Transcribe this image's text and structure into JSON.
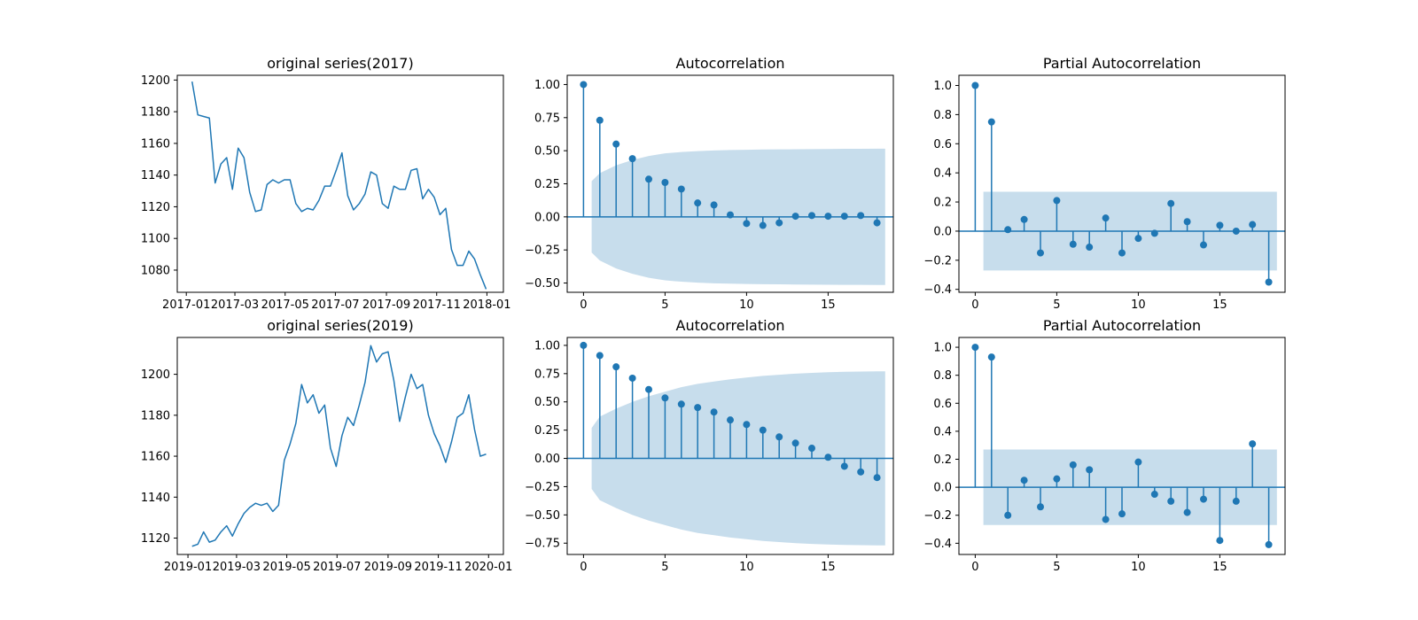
{
  "colors": {
    "line": "#1f77b4",
    "band": "#1f77b4",
    "band_opacity": 0.25,
    "axis": "#000000"
  },
  "chart_data": [
    {
      "id": "series-2017",
      "type": "line",
      "title": "original series(2017)",
      "x_start": "2017-01-08",
      "x_step_days": 7,
      "values": [
        1199,
        1178,
        1177,
        1176,
        1135,
        1147,
        1151,
        1131,
        1157,
        1151,
        1129,
        1117,
        1118,
        1134,
        1137,
        1135,
        1137,
        1137,
        1122,
        1117,
        1119,
        1118,
        1124,
        1133,
        1133,
        1143,
        1154,
        1127,
        1118,
        1122,
        1128,
        1142,
        1140,
        1122,
        1119,
        1133,
        1131,
        1131,
        1143,
        1144,
        1125,
        1131,
        1126,
        1115,
        1119,
        1093,
        1083,
        1083,
        1092,
        1087,
        1077,
        1068
      ],
      "xlim": [
        "2016-12-21",
        "2018-01-21"
      ],
      "ylim": [
        1066,
        1203
      ],
      "xticks": [
        "2017-01-01",
        "2017-03-01",
        "2017-05-01",
        "2017-07-01",
        "2017-09-01",
        "2017-11-01",
        "2018-01-01"
      ],
      "xtick_labels": [
        "2017-01",
        "2017-03",
        "2017-05",
        "2017-07",
        "2017-09",
        "2017-11",
        "2018-01"
      ],
      "yticks": [
        1080,
        1100,
        1120,
        1140,
        1160,
        1180,
        1200
      ]
    },
    {
      "id": "acf-2017",
      "type": "stem",
      "title": "Autocorrelation",
      "values": [
        1.0,
        0.73,
        0.55,
        0.44,
        0.285,
        0.26,
        0.21,
        0.105,
        0.09,
        0.015,
        -0.05,
        -0.065,
        -0.045,
        0.005,
        0.01,
        0.005,
        0.005,
        0.01,
        -0.045
      ],
      "confint": [
        0.27,
        0.33,
        0.39,
        0.43,
        0.46,
        0.48,
        0.49,
        0.497,
        0.502,
        0.505,
        0.507,
        0.509,
        0.51,
        0.511,
        0.512,
        0.513,
        0.514,
        0.514,
        0.515
      ],
      "xlim": [
        -1,
        19
      ],
      "ylim": [
        -0.57,
        1.07
      ],
      "xticks": [
        0,
        5,
        10,
        15
      ],
      "yticks": [
        -0.5,
        -0.25,
        0,
        0.25,
        0.5,
        0.75,
        1.0
      ],
      "ytick_labels": [
        "−0.50",
        "−0.25",
        "0.00",
        "0.25",
        "0.50",
        "0.75",
        "1.00"
      ]
    },
    {
      "id": "pacf-2017",
      "type": "stem",
      "title": "Partial Autocorrelation",
      "values": [
        1.0,
        0.75,
        0.01,
        0.08,
        -0.15,
        0.21,
        -0.09,
        -0.11,
        0.09,
        -0.15,
        -0.05,
        -0.015,
        0.19,
        0.065,
        -0.095,
        0.04,
        0.0,
        0.045,
        -0.35
      ],
      "confint": [
        0.27,
        0.27,
        0.27,
        0.27,
        0.27,
        0.27,
        0.27,
        0.27,
        0.27,
        0.27,
        0.27,
        0.27,
        0.27,
        0.27,
        0.27,
        0.27,
        0.27,
        0.27,
        0.27
      ],
      "confint_start": 0.5,
      "xlim": [
        -1,
        19
      ],
      "ylim": [
        -0.42,
        1.07
      ],
      "xticks": [
        0,
        5,
        10,
        15
      ],
      "yticks": [
        -0.4,
        -0.2,
        0,
        0.2,
        0.4,
        0.6,
        0.8,
        1.0
      ],
      "ytick_labels": [
        "−0.4",
        "−0.2",
        "0.0",
        "0.2",
        "0.4",
        "0.6",
        "0.8",
        "1.0"
      ]
    },
    {
      "id": "series-2019",
      "type": "line",
      "title": "original series(2019)",
      "x_start": "2019-01-06",
      "x_step_days": 7,
      "values": [
        1116,
        1117,
        1123,
        1118,
        1119,
        1123,
        1126,
        1121,
        1127,
        1132,
        1135,
        1137,
        1136,
        1137,
        1133,
        1136,
        1158,
        1166,
        1176,
        1195,
        1186,
        1190,
        1181,
        1185,
        1164,
        1155,
        1170,
        1179,
        1175,
        1185,
        1196,
        1214,
        1206,
        1210,
        1211,
        1197,
        1177,
        1189,
        1200,
        1193,
        1195,
        1180,
        1171,
        1165,
        1157,
        1167,
        1179,
        1181,
        1190,
        1173,
        1160,
        1161
      ],
      "xlim": [
        "2018-12-19",
        "2020-01-19"
      ],
      "ylim": [
        1112,
        1218
      ],
      "xticks": [
        "2019-01-01",
        "2019-03-01",
        "2019-05-01",
        "2019-07-01",
        "2019-09-01",
        "2019-11-01",
        "2020-01-01"
      ],
      "xtick_labels": [
        "2019-01",
        "2019-03",
        "2019-05",
        "2019-07",
        "2019-09",
        "2019-11",
        "2020-01"
      ],
      "yticks": [
        1120,
        1140,
        1160,
        1180,
        1200
      ]
    },
    {
      "id": "acf-2019",
      "type": "stem",
      "title": "Autocorrelation",
      "values": [
        1.0,
        0.91,
        0.81,
        0.71,
        0.61,
        0.535,
        0.48,
        0.45,
        0.41,
        0.34,
        0.3,
        0.25,
        0.19,
        0.135,
        0.09,
        0.01,
        -0.07,
        -0.12,
        -0.17
      ],
      "confint": [
        0.27,
        0.37,
        0.44,
        0.5,
        0.55,
        0.59,
        0.63,
        0.66,
        0.68,
        0.7,
        0.715,
        0.73,
        0.74,
        0.75,
        0.757,
        0.762,
        0.766,
        0.768,
        0.77
      ],
      "xlim": [
        -1,
        19
      ],
      "ylim": [
        -0.85,
        1.07
      ],
      "xticks": [
        0,
        5,
        10,
        15
      ],
      "yticks": [
        -0.75,
        -0.5,
        -0.25,
        0,
        0.25,
        0.5,
        0.75,
        1.0
      ],
      "ytick_labels": [
        "−0.75",
        "−0.50",
        "−0.25",
        "0.00",
        "0.25",
        "0.50",
        "0.75",
        "1.00"
      ]
    },
    {
      "id": "pacf-2019",
      "type": "stem",
      "title": "Partial Autocorrelation",
      "values": [
        1.0,
        0.93,
        -0.2,
        0.05,
        -0.14,
        0.06,
        0.16,
        0.125,
        -0.23,
        -0.19,
        0.18,
        -0.05,
        -0.1,
        -0.18,
        -0.085,
        -0.38,
        -0.1,
        0.31,
        -0.41
      ],
      "confint": [
        0.27,
        0.27,
        0.27,
        0.27,
        0.27,
        0.27,
        0.27,
        0.27,
        0.27,
        0.27,
        0.27,
        0.27,
        0.27,
        0.27,
        0.27,
        0.27,
        0.27,
        0.27,
        0.27
      ],
      "confint_start": 0.5,
      "xlim": [
        -1,
        19
      ],
      "ylim": [
        -0.48,
        1.07
      ],
      "xticks": [
        0,
        5,
        10,
        15
      ],
      "yticks": [
        -0.4,
        -0.2,
        0,
        0.2,
        0.4,
        0.6,
        0.8,
        1.0
      ],
      "ytick_labels": [
        "−0.4",
        "−0.2",
        "0.0",
        "0.2",
        "0.4",
        "0.6",
        "0.8",
        "1.0"
      ]
    }
  ]
}
